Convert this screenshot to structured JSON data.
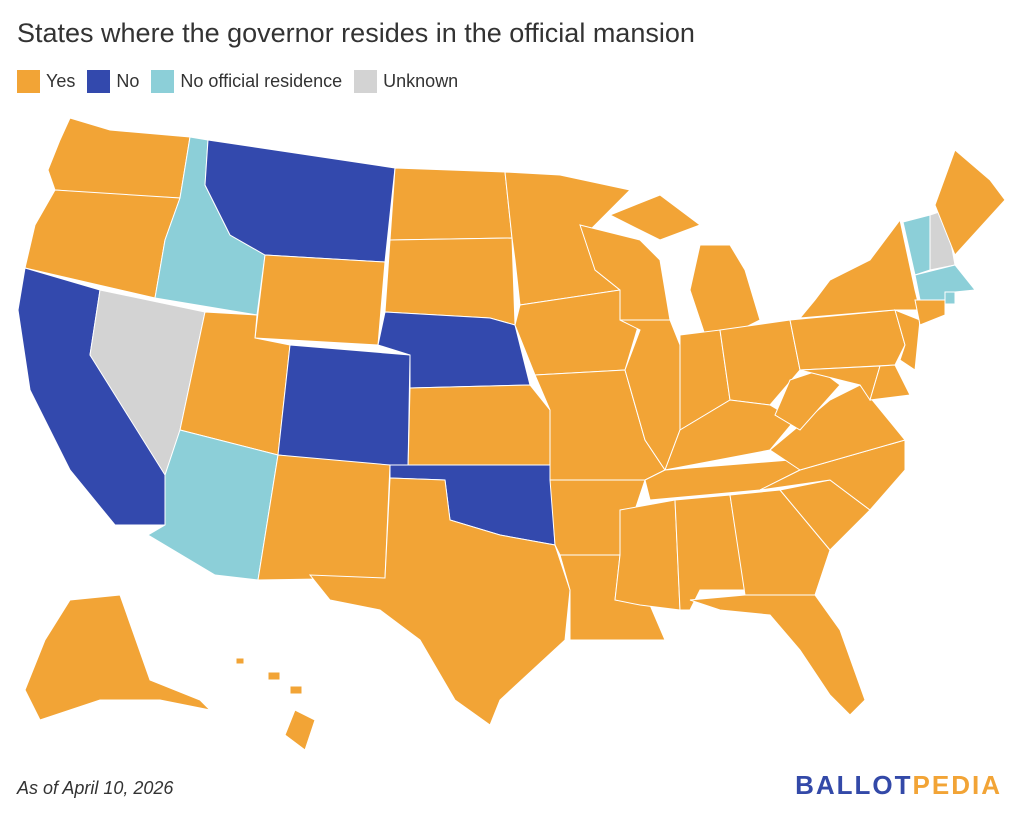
{
  "title": "States where the governor resides in the official mansion",
  "legend": [
    {
      "label": "Yes",
      "color": "#f2a436"
    },
    {
      "label": "No",
      "color": "#3349ad"
    },
    {
      "label": "No official residence",
      "color": "#8ccfd8"
    },
    {
      "label": "Unknown",
      "color": "#d3d3d3"
    }
  ],
  "states": {
    "WA": "Yes",
    "OR": "Yes",
    "CA": "No",
    "NV": "Unknown",
    "ID": "No official residence",
    "MT": "No",
    "WY": "Yes",
    "UT": "Yes",
    "AZ": "No official residence",
    "CO": "No",
    "NM": "Yes",
    "ND": "Yes",
    "SD": "Yes",
    "NE": "No",
    "KS": "Yes",
    "OK": "No",
    "TX": "Yes",
    "MN": "Yes",
    "IA": "Yes",
    "MO": "Yes",
    "AR": "Yes",
    "LA": "Yes",
    "WI": "Yes",
    "IL": "Yes",
    "MI": "Yes",
    "IN": "Yes",
    "OH": "Yes",
    "KY": "Yes",
    "TN": "Yes",
    "MS": "Yes",
    "AL": "Yes",
    "GA": "Yes",
    "FL": "Yes",
    "SC": "Yes",
    "NC": "Yes",
    "VA": "Yes",
    "WV": "Yes",
    "PA": "Yes",
    "NY": "Yes",
    "NJ": "Yes",
    "MD": "Yes",
    "DE": "Yes",
    "VT": "No official residence",
    "NH": "Unknown",
    "ME": "Yes",
    "MA": "No official residence",
    "RI": "No official residence",
    "CT": "Yes",
    "AK": "Yes",
    "HI": "Yes"
  },
  "footer": {
    "note": "As of April 10, 2026",
    "logo_part1": "BALLOT",
    "logo_part2": "PEDIA"
  }
}
